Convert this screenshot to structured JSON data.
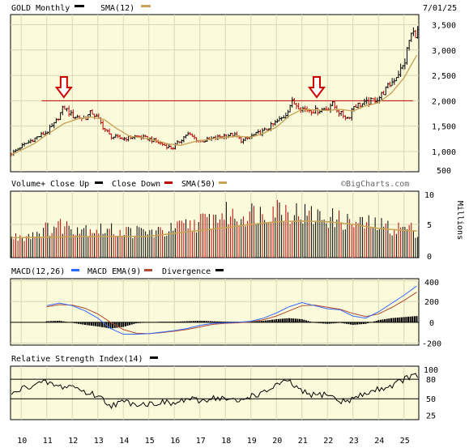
{
  "header": {
    "title": "GOLD Monthly",
    "sma_label": "SMA(12)",
    "date": "7/01/25"
  },
  "annotations": {
    "watermark": "©BigCharts.com",
    "arrow_dates": [
      2011.67,
      2021.58
    ],
    "resistance_level": 2000
  },
  "colors": {
    "background": "#ffffff",
    "plot_bg": "#fbfbdc",
    "grid": "#d8d8b4",
    "up": "#000000",
    "down": "#bb0000",
    "sma": "#c8a458",
    "macd": "#3366ff",
    "macd_ema": "#b04a30",
    "arrow": "#cc0000",
    "resistance": "#c00000"
  },
  "x_axis": {
    "ticks": [
      "10",
      "11",
      "12",
      "13",
      "14",
      "15",
      "16",
      "17",
      "18",
      "19",
      "20",
      "21",
      "22",
      "23",
      "24",
      "25"
    ]
  },
  "chart_data": [
    {
      "type": "line",
      "name": "price",
      "title": "GOLD Monthly",
      "ylim": [
        600,
        3700
      ],
      "ticks": [
        "500",
        "1,000",
        "1,500",
        "2,000",
        "2,500",
        "3,000",
        "3,500"
      ],
      "tick_values": [
        500,
        1000,
        1500,
        2000,
        2500,
        3000,
        3500
      ],
      "x_range": [
        2009.58,
        2025.58
      ],
      "series": [
        {
          "name": "GOLD Monthly",
          "x": [
            2009.6,
            2010.0,
            2010.5,
            2011.0,
            2011.33,
            2011.67,
            2012.0,
            2012.5,
            2012.75,
            2013.0,
            2013.25,
            2013.5,
            2014.0,
            2014.5,
            2015.0,
            2015.5,
            2015.92,
            2016.5,
            2017.0,
            2017.5,
            2018.0,
            2018.33,
            2018.67,
            2019.0,
            2019.5,
            2020.0,
            2020.33,
            2020.6,
            2021.0,
            2021.5,
            2022.0,
            2022.17,
            2022.5,
            2022.83,
            2023.0,
            2023.5,
            2024.0,
            2024.5,
            2025.0,
            2025.25,
            2025.5
          ],
          "values": [
            950,
            1100,
            1250,
            1380,
            1560,
            1880,
            1700,
            1650,
            1780,
            1650,
            1450,
            1300,
            1250,
            1300,
            1250,
            1150,
            1060,
            1350,
            1200,
            1250,
            1320,
            1330,
            1200,
            1300,
            1400,
            1580,
            1700,
            1980,
            1850,
            1800,
            1850,
            1950,
            1750,
            1650,
            1900,
            1950,
            2050,
            2350,
            2700,
            3300,
            3350
          ]
        },
        {
          "name": "SMA(12)",
          "x": [
            2009.6,
            2010.5,
            2011.0,
            2011.67,
            2012.25,
            2012.75,
            2013.25,
            2013.75,
            2014.25,
            2014.75,
            2015.25,
            2015.75,
            2016.25,
            2016.75,
            2017.5,
            2018.0,
            2018.5,
            2019.0,
            2019.5,
            2020.0,
            2020.5,
            2021.0,
            2021.5,
            2022.0,
            2022.5,
            2023.0,
            2023.5,
            2024.0,
            2024.5,
            2025.0,
            2025.5
          ],
          "values": [
            930,
            1150,
            1330,
            1550,
            1650,
            1680,
            1630,
            1450,
            1300,
            1270,
            1220,
            1150,
            1120,
            1190,
            1250,
            1280,
            1300,
            1280,
            1360,
            1480,
            1700,
            1830,
            1820,
            1810,
            1830,
            1800,
            1900,
            1960,
            2150,
            2450,
            2900
          ]
        }
      ],
      "markers": [
        {
          "x": 2011.67,
          "label": "arrow"
        },
        {
          "x": 2021.58,
          "label": "arrow"
        }
      ],
      "hline": 2000
    },
    {
      "type": "bar",
      "name": "volume",
      "title": "Volume+",
      "legend": [
        "Close Up",
        "Close Down",
        "SMA(50)"
      ],
      "ylabel": "Millions",
      "ylim": [
        0,
        10
      ],
      "ticks": [
        "0",
        "5",
        "10"
      ],
      "tick_values": [
        0,
        5,
        10
      ],
      "x": [
        2009.6,
        2010.5,
        2011.5,
        2012.5,
        2013.5,
        2014.5,
        2015.5,
        2016.5,
        2017.5,
        2018.0,
        2018.5,
        2019.0,
        2019.5,
        2020.0,
        2020.5,
        2021.0,
        2021.5,
        2022.0,
        2022.5,
        2023.0,
        2023.5,
        2024.0,
        2024.5,
        2025.0,
        2025.5
      ],
      "values": [
        3.0,
        3.8,
        5.0,
        4.6,
        4.2,
        4.0,
        3.9,
        5.0,
        6.0,
        6.8,
        6.2,
        7.0,
        6.8,
        7.8,
        7.2,
        6.8,
        6.4,
        6.2,
        5.8,
        5.3,
        5.2,
        5.0,
        4.6,
        4.6,
        4.2
      ],
      "sma50": {
        "x": [
          2009.6,
          2013.0,
          2015.0,
          2016.5,
          2018.0,
          2019.0,
          2020.0,
          2021.0,
          2022.0,
          2023.0,
          2024.0,
          2025.0,
          2025.5
        ],
        "values": [
          3.0,
          3.2,
          3.2,
          3.9,
          4.5,
          5.0,
          5.4,
          5.5,
          5.4,
          5.0,
          4.4,
          4.1,
          4.0
        ]
      }
    },
    {
      "type": "line",
      "name": "macd",
      "title": "MACD(12,26)",
      "legend": [
        "MACD EMA(9)",
        "Divergence"
      ],
      "ylim": [
        -220,
        420
      ],
      "ticks": [
        "-200",
        "0",
        "200",
        "400"
      ],
      "tick_values": [
        -200,
        0,
        200,
        400
      ],
      "series": [
        {
          "name": "MACD(12,26)",
          "x": [
            2011.0,
            2011.5,
            2012.0,
            2012.5,
            2013.0,
            2013.5,
            2014.0,
            2014.5,
            2015.0,
            2015.5,
            2016.0,
            2016.5,
            2017.0,
            2017.5,
            2018.0,
            2018.5,
            2019.0,
            2019.5,
            2020.0,
            2020.5,
            2021.0,
            2021.5,
            2022.0,
            2022.5,
            2023.0,
            2023.5,
            2024.0,
            2024.5,
            2025.0,
            2025.5
          ],
          "values": [
            160,
            185,
            160,
            110,
            40,
            -60,
            -115,
            -115,
            -110,
            -95,
            -80,
            -60,
            -30,
            -10,
            -5,
            0,
            10,
            40,
            90,
            150,
            190,
            160,
            130,
            120,
            60,
            40,
            100,
            180,
            260,
            350
          ]
        },
        {
          "name": "MACD EMA(9)",
          "x": [
            2011.0,
            2011.5,
            2012.0,
            2012.5,
            2013.0,
            2013.5,
            2014.0,
            2014.5,
            2015.0,
            2015.5,
            2016.0,
            2016.5,
            2017.0,
            2017.5,
            2018.0,
            2018.5,
            2019.0,
            2019.5,
            2020.0,
            2020.5,
            2021.0,
            2021.5,
            2022.0,
            2022.5,
            2023.0,
            2023.5,
            2024.0,
            2024.5,
            2025.0,
            2025.5
          ],
          "values": [
            150,
            170,
            165,
            135,
            80,
            0,
            -70,
            -105,
            -110,
            -100,
            -85,
            -70,
            -45,
            -20,
            -10,
            -5,
            5,
            25,
            60,
            110,
            160,
            165,
            145,
            125,
            85,
            55,
            80,
            140,
            210,
            290
          ]
        }
      ]
    },
    {
      "type": "line",
      "name": "rsi",
      "title": "Relative Strength Index(14)",
      "ylim": [
        18,
        100
      ],
      "ticks": [
        "25",
        "50",
        "80",
        "100"
      ],
      "tick_values": [
        25,
        50,
        80,
        100
      ],
      "x": [
        2009.6,
        2010.0,
        2010.5,
        2011.0,
        2011.5,
        2012.0,
        2012.5,
        2013.0,
        2013.5,
        2014.0,
        2014.5,
        2015.0,
        2015.5,
        2016.0,
        2016.5,
        2017.0,
        2017.5,
        2018.0,
        2018.5,
        2019.0,
        2019.5,
        2020.0,
        2020.5,
        2021.0,
        2021.5,
        2022.0,
        2022.5,
        2023.0,
        2023.5,
        2024.0,
        2024.5,
        2025.0,
        2025.3,
        2025.5
      ],
      "values": [
        55,
        65,
        72,
        75,
        68,
        70,
        60,
        55,
        40,
        45,
        43,
        42,
        45,
        42,
        50,
        46,
        52,
        50,
        45,
        55,
        58,
        72,
        76,
        60,
        55,
        58,
        45,
        50,
        58,
        65,
        70,
        80,
        85,
        84
      ]
    }
  ]
}
